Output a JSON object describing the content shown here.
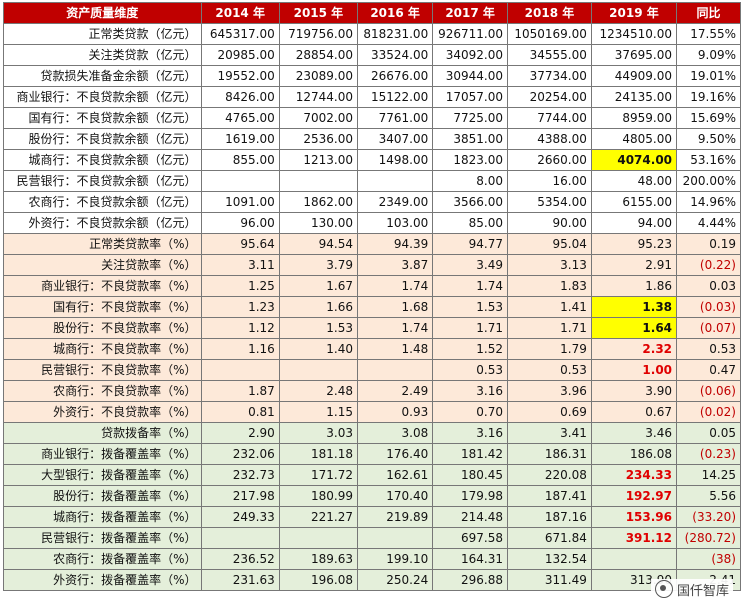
{
  "header": [
    "资产质量维度",
    "2014 年",
    "2015 年",
    "2016 年",
    "2017 年",
    "2018 年",
    "2019 年",
    "同比"
  ],
  "rows": [
    {
      "label": "正常类贷款（亿元）",
      "values": [
        "645317.00",
        "719756.00",
        "818231.00",
        "926711.00",
        "1050169.00",
        "1234510.00",
        "17.55%"
      ],
      "bg": "w"
    },
    {
      "label": "关注类贷款（亿元）",
      "values": [
        "20985.00",
        "28854.00",
        "33524.00",
        "34092.00",
        "34555.00",
        "37695.00",
        "9.09%"
      ],
      "bg": "w"
    },
    {
      "label": "贷款损失准备金余额（亿元）",
      "values": [
        "19552.00",
        "23089.00",
        "26676.00",
        "30944.00",
        "37734.00",
        "44909.00",
        "19.01%"
      ],
      "bg": "w"
    },
    {
      "label": "商业银行：不良贷款余额（亿元）",
      "values": [
        "8426.00",
        "12744.00",
        "15122.00",
        "17057.00",
        "20254.00",
        "24135.00",
        "19.16%"
      ],
      "bg": "w"
    },
    {
      "label": "国有行：不良贷款余额（亿元）",
      "values": [
        "4765.00",
        "7002.00",
        "7761.00",
        "7725.00",
        "7744.00",
        "8959.00",
        "15.69%"
      ],
      "bg": "w"
    },
    {
      "label": "股份行：不良贷款余额（亿元）",
      "values": [
        "1619.00",
        "2536.00",
        "3407.00",
        "3851.00",
        "4388.00",
        "4805.00",
        "9.50%"
      ],
      "bg": "w"
    },
    {
      "label": "城商行：不良贷款余额（亿元）",
      "values": [
        "855.00",
        "1213.00",
        "1498.00",
        "1823.00",
        "2660.00",
        "4074.00",
        "53.16%"
      ],
      "bg": "w",
      "hl": [
        5
      ]
    },
    {
      "label": "民营银行：不良贷款余额（亿元）",
      "values": [
        "",
        "",
        "",
        "8.00",
        "16.00",
        "48.00",
        "200.00%"
      ],
      "bg": "w"
    },
    {
      "label": "农商行：不良贷款余额（亿元）",
      "values": [
        "1091.00",
        "1862.00",
        "2349.00",
        "3566.00",
        "5354.00",
        "6155.00",
        "14.96%"
      ],
      "bg": "w"
    },
    {
      "label": "外资行：不良贷款余额（亿元）",
      "values": [
        "96.00",
        "130.00",
        "103.00",
        "85.00",
        "90.00",
        "94.00",
        "4.44%"
      ],
      "bg": "w"
    },
    {
      "label": "正常类贷款率（%）",
      "values": [
        "95.64",
        "94.54",
        "94.39",
        "94.77",
        "95.04",
        "95.23",
        "0.19"
      ],
      "bg": "p"
    },
    {
      "label": "关注贷款率（%）",
      "values": [
        "3.11",
        "3.79",
        "3.87",
        "3.49",
        "3.13",
        "2.91",
        "(0.22)"
      ],
      "bg": "p",
      "neg": [
        6
      ]
    },
    {
      "label": "商业银行：不良贷款率（%）",
      "values": [
        "1.25",
        "1.67",
        "1.74",
        "1.74",
        "1.83",
        "1.86",
        "0.03"
      ],
      "bg": "p"
    },
    {
      "label": "国有行：不良贷款率（%）",
      "values": [
        "1.23",
        "1.66",
        "1.68",
        "1.53",
        "1.41",
        "1.38",
        "(0.03)"
      ],
      "bg": "p",
      "hl": [
        5
      ],
      "neg": [
        6
      ]
    },
    {
      "label": "股份行：不良贷款率（%）",
      "values": [
        "1.12",
        "1.53",
        "1.74",
        "1.71",
        "1.71",
        "1.64",
        "(0.07)"
      ],
      "bg": "p",
      "hl": [
        5
      ],
      "neg": [
        6
      ]
    },
    {
      "label": "城商行：不良贷款率（%）",
      "values": [
        "1.16",
        "1.40",
        "1.48",
        "1.52",
        "1.79",
        "2.32",
        "0.53"
      ],
      "bg": "p",
      "red": [
        5
      ]
    },
    {
      "label": "民营银行：不良贷款率（%）",
      "values": [
        "",
        "",
        "",
        "0.53",
        "0.53",
        "1.00",
        "0.47"
      ],
      "bg": "p",
      "red": [
        5
      ]
    },
    {
      "label": "农商行：不良贷款率（%）",
      "values": [
        "1.87",
        "2.48",
        "2.49",
        "3.16",
        "3.96",
        "3.90",
        "(0.06)"
      ],
      "bg": "p",
      "neg": [
        6
      ]
    },
    {
      "label": "外资行：不良贷款率（%）",
      "values": [
        "0.81",
        "1.15",
        "0.93",
        "0.70",
        "0.69",
        "0.67",
        "(0.02)"
      ],
      "bg": "p",
      "neg": [
        6
      ]
    },
    {
      "label": "贷款拨备率（%）",
      "values": [
        "2.90",
        "3.03",
        "3.08",
        "3.16",
        "3.41",
        "3.46",
        "0.05"
      ],
      "bg": "g"
    },
    {
      "label": "商业银行：拨备覆盖率（%）",
      "values": [
        "232.06",
        "181.18",
        "176.40",
        "181.42",
        "186.31",
        "186.08",
        "(0.23)"
      ],
      "bg": "g",
      "neg": [
        6
      ]
    },
    {
      "label": "大型银行：拨备覆盖率（%）",
      "values": [
        "232.73",
        "171.72",
        "162.61",
        "180.45",
        "220.08",
        "234.33",
        "14.25"
      ],
      "bg": "g",
      "red": [
        5
      ]
    },
    {
      "label": "股份行：拨备覆盖率（%）",
      "values": [
        "217.98",
        "180.99",
        "170.40",
        "179.98",
        "187.41",
        "192.97",
        "5.56"
      ],
      "bg": "g",
      "red": [
        5
      ]
    },
    {
      "label": "城商行：拨备覆盖率（%）",
      "values": [
        "249.33",
        "221.27",
        "219.89",
        "214.48",
        "187.16",
        "153.96",
        "(33.20)"
      ],
      "bg": "g",
      "red": [
        5
      ],
      "neg": [
        6
      ]
    },
    {
      "label": "民营银行：拨备覆盖率（%）",
      "values": [
        "",
        "",
        "",
        "697.58",
        "671.84",
        "391.12",
        "(280.72)"
      ],
      "bg": "g",
      "red": [
        5
      ],
      "neg": [
        6
      ]
    },
    {
      "label": "农商行：拨备覆盖率（%）",
      "values": [
        "236.52",
        "189.63",
        "199.10",
        "164.31",
        "132.54",
        "",
        "(38)"
      ],
      "bg": "g",
      "neg": [
        6
      ]
    },
    {
      "label": "外资行：拨备覆盖率（%）",
      "values": [
        "231.63",
        "196.08",
        "250.24",
        "296.88",
        "311.49",
        "313.90",
        "2.41"
      ],
      "bg": "g"
    }
  ],
  "watermark": {
    "text": "国仟智库",
    "icon": "wechat-icon"
  },
  "colors": {
    "header_bg": "#c00000",
    "highlight": "#ffff00",
    "peach_row": "#fde9d9",
    "green_row": "#e4efda",
    "emphasis_red": "#e00000"
  }
}
